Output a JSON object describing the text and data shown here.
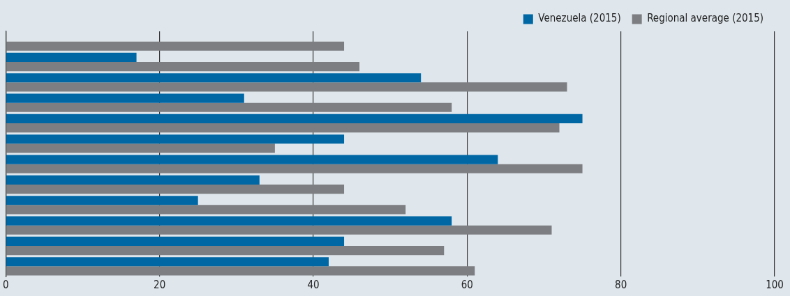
{
  "chart_data": {
    "type": "bar",
    "orientation": "horizontal",
    "categories": [
      null,
      null,
      null,
      null,
      null,
      null,
      null,
      null,
      null,
      null,
      null,
      null
    ],
    "series": [
      {
        "name": "Venezuela (2015)",
        "color": "#0067a5",
        "values": [
          null,
          17,
          54,
          31,
          75,
          44,
          64,
          33,
          25,
          58,
          44,
          42
        ]
      },
      {
        "name": "Regional average (2015)",
        "color": "#7d7e81",
        "values": [
          44,
          46,
          73,
          58,
          72,
          35,
          75,
          44,
          52,
          71,
          57,
          61
        ]
      }
    ],
    "xlim": [
      0,
      100
    ],
    "xticks": [
      0,
      20,
      40,
      60,
      80,
      100
    ],
    "grid": "x",
    "legend": "top right"
  }
}
